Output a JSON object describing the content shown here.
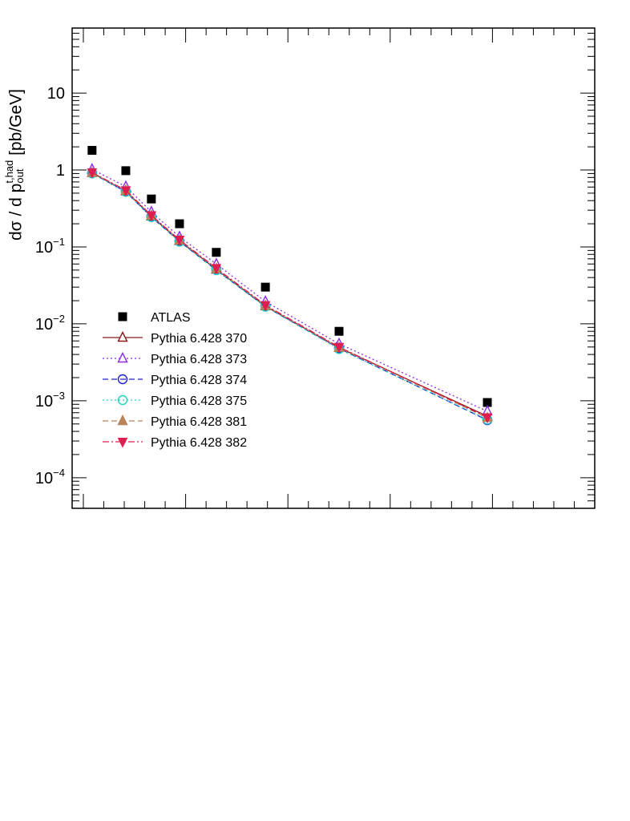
{
  "chart_data": {
    "type": "scatter",
    "title": "",
    "xlabel": "",
    "ylabel": {
      "base": "dσ / d p",
      "sup": "t,had",
      "sub": "out",
      "unit": " [pb/GeV]"
    },
    "yscale": "log",
    "ylim": [
      4e-05,
      70
    ],
    "xlim": [
      0,
      1000
    ],
    "yticks": [
      {
        "value": 0.0001,
        "base": "10",
        "exp": "−4"
      },
      {
        "value": 0.001,
        "base": "10",
        "exp": "−3"
      },
      {
        "value": 0.01,
        "base": "10",
        "exp": "−2"
      },
      {
        "value": 0.1,
        "base": "10",
        "exp": "−1"
      },
      {
        "value": 1,
        "base": "1",
        "exp": ""
      },
      {
        "value": 10,
        "base": "10",
        "exp": ""
      }
    ],
    "xticks_major": [
      0,
      200,
      400,
      600,
      800,
      1000
    ],
    "grid": false,
    "legend_position": "left",
    "x": [
      17,
      83,
      133,
      188,
      260,
      356,
      500,
      790
    ],
    "series": [
      {
        "name": "ATLAS",
        "color": "#000000",
        "marker": "square-filled",
        "line": "none",
        "values": [
          1.8,
          0.98,
          0.42,
          0.2,
          0.085,
          0.03,
          0.008,
          0.00095
        ]
      },
      {
        "name": "Pythia 6.428 370",
        "color": "#8b1a1a",
        "marker": "triangle-up-open",
        "line": "solid",
        "values": [
          0.92,
          0.53,
          0.25,
          0.12,
          0.051,
          0.017,
          0.0049,
          0.00063
        ]
      },
      {
        "name": "Pythia 6.428 373",
        "color": "#8b2be2",
        "marker": "triangle-up-open",
        "line": "dotted",
        "values": [
          1.02,
          0.61,
          0.285,
          0.135,
          0.06,
          0.0195,
          0.0055,
          0.00073
        ]
      },
      {
        "name": "Pythia 6.428 374",
        "color": "#1f1fd0",
        "marker": "circle-open",
        "line": "dashed",
        "values": [
          0.91,
          0.52,
          0.245,
          0.118,
          0.05,
          0.0168,
          0.0048,
          0.00056
        ]
      },
      {
        "name": "Pythia 6.428 375",
        "color": "#20d0c0",
        "marker": "circle-open",
        "line": "dotted",
        "values": [
          0.9,
          0.52,
          0.244,
          0.117,
          0.05,
          0.0167,
          0.0047,
          0.00057
        ]
      },
      {
        "name": "Pythia 6.428 381",
        "color": "#b8845a",
        "marker": "triangle-up-filled",
        "line": "dashed",
        "values": [
          0.92,
          0.54,
          0.255,
          0.122,
          0.052,
          0.0172,
          0.0049,
          0.0006
        ]
      },
      {
        "name": "Pythia 6.428 382",
        "color": "#dc1e50",
        "marker": "triangle-down-filled",
        "line": "dashdot",
        "values": [
          0.93,
          0.545,
          0.258,
          0.124,
          0.053,
          0.0175,
          0.005,
          0.00061
        ]
      }
    ]
  }
}
